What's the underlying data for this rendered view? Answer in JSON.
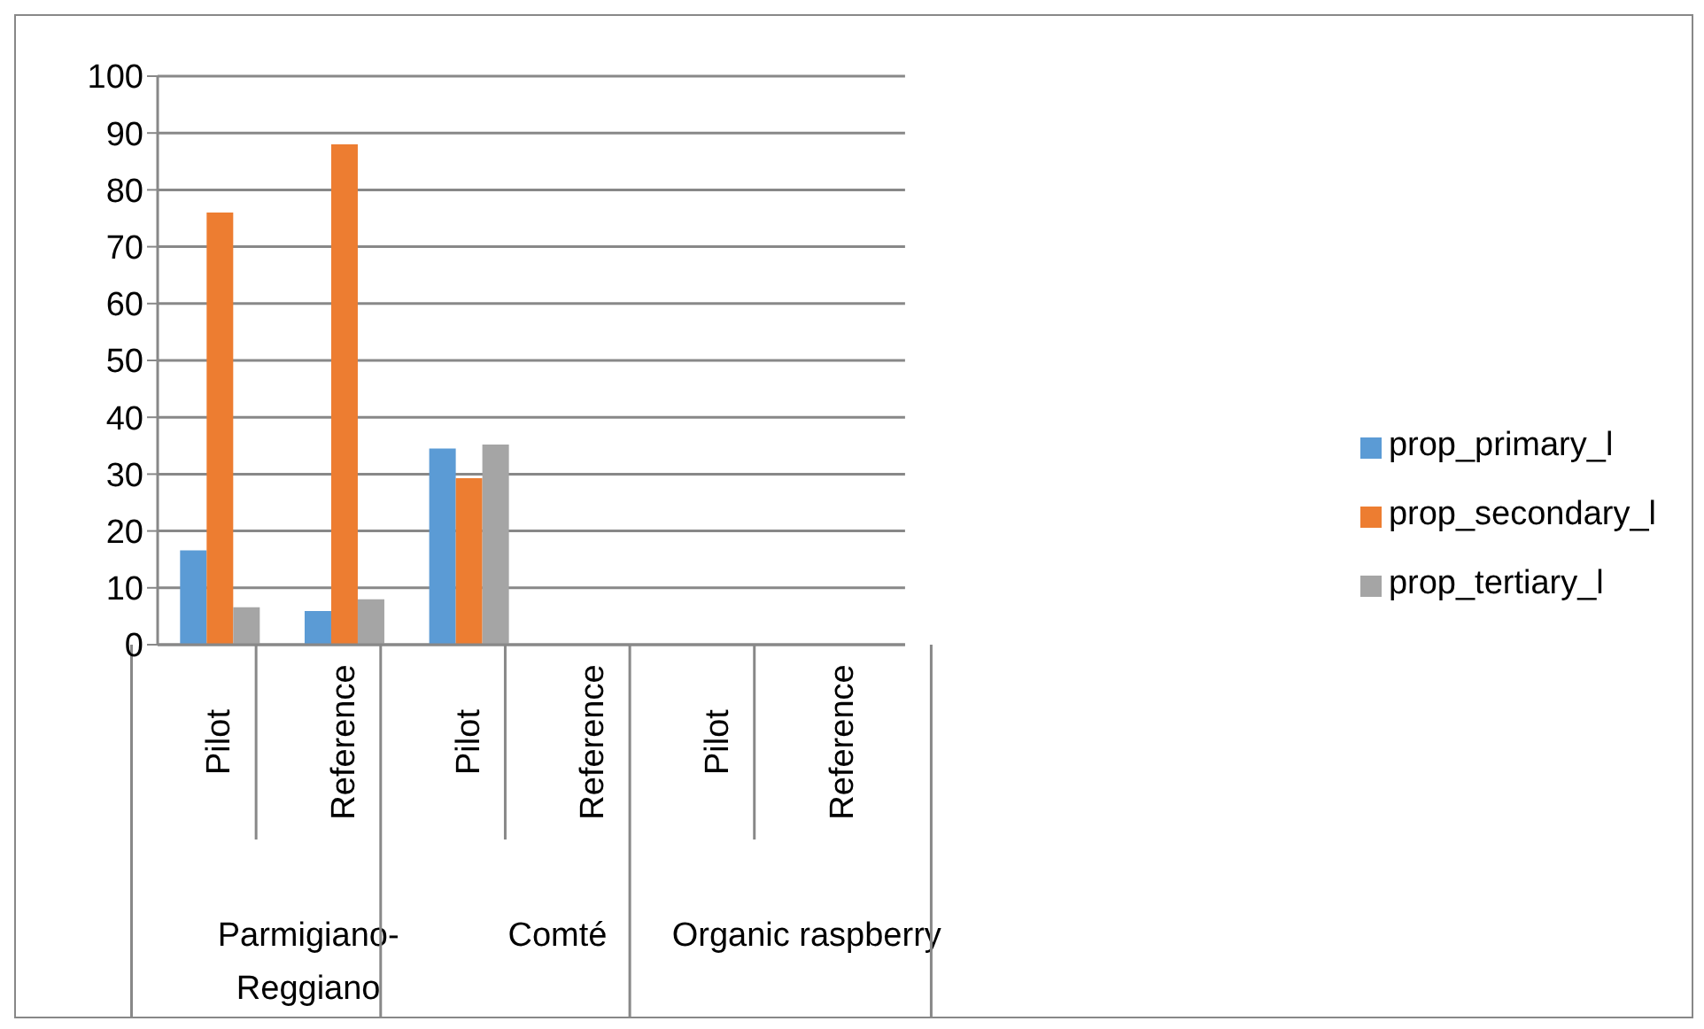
{
  "chart_data": {
    "type": "bar",
    "categories": [
      "Pilot",
      "Reference",
      "Pilot",
      "Reference",
      "Pilot",
      "Reference"
    ],
    "annotations": [
      "Parmigiano-\nReggiano",
      "Comté",
      "Organic raspberry"
    ],
    "series": [
      {
        "name": "prop_primary_l",
        "color": "#5b9bd5",
        "values": [
          16.6,
          5.9,
          34.5,
          null,
          null,
          null
        ]
      },
      {
        "name": "prop_secondary_l",
        "color": "#ed7d31",
        "values": [
          76,
          88,
          29.3,
          null,
          null,
          null
        ]
      },
      {
        "name": "prop_tertiary_l",
        "color": "#a5a5a5",
        "values": [
          6.6,
          8,
          35.2,
          null,
          null,
          null
        ]
      }
    ],
    "ylim": [
      0,
      100
    ],
    "yticks": [
      0,
      10,
      20,
      30,
      40,
      50,
      60,
      70,
      80,
      90,
      100
    ],
    "grid": "y",
    "legend": "right"
  }
}
